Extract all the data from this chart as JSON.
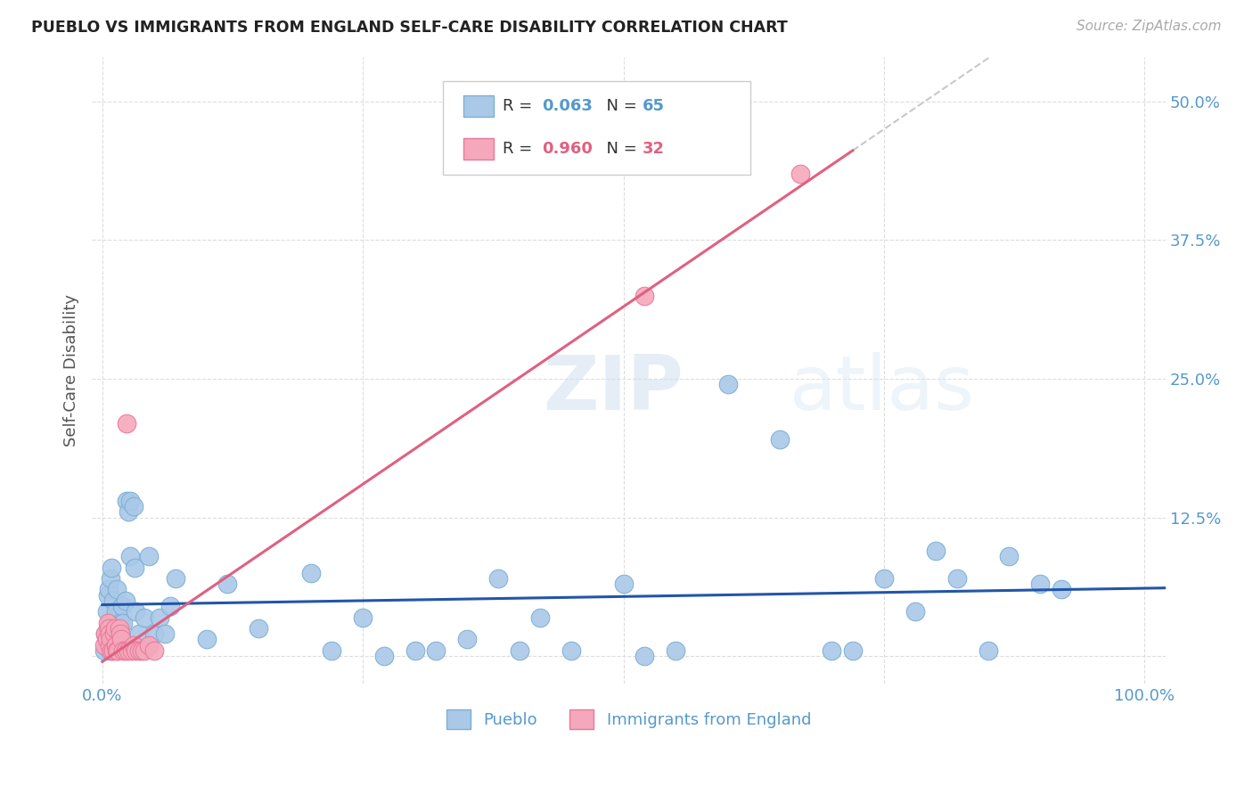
{
  "title": "PUEBLO VS IMMIGRANTS FROM ENGLAND SELF-CARE DISABILITY CORRELATION CHART",
  "source": "Source: ZipAtlas.com",
  "ylabel": "Self-Care Disability",
  "watermark": "ZIPatlas",
  "xlim": [
    -0.01,
    1.02
  ],
  "ylim": [
    -0.025,
    0.54
  ],
  "xticks": [
    0.0,
    0.25,
    0.5,
    0.75,
    1.0
  ],
  "xticklabels": [
    "0.0%",
    "",
    "",
    "",
    "100.0%"
  ],
  "yticks": [
    0.0,
    0.125,
    0.25,
    0.375,
    0.5
  ],
  "yticklabels": [
    "",
    "12.5%",
    "25.0%",
    "37.5%",
    "50.0%"
  ],
  "pueblo_color": "#aac8e8",
  "pueblo_edge": "#7aafd4",
  "england_color": "#f5a8bc",
  "england_edge": "#e87898",
  "pueblo_R": 0.063,
  "pueblo_N": 65,
  "england_R": 0.96,
  "england_N": 32,
  "legend_label_pueblo": "Pueblo",
  "legend_label_england": "Immigrants from England",
  "pueblo_line_color": "#2255aa",
  "england_line_color": "#e06080",
  "trend_ext_color": "#c8c8c8",
  "background_color": "#ffffff",
  "grid_color": "#dddddd",
  "title_color": "#222222",
  "axis_label_color": "#555555",
  "tick_color": "#5599cc",
  "legend_R_color_pueblo": "#5599cc",
  "legend_R_color_england": "#e06080",
  "pueblo_points": [
    [
      0.002,
      0.005
    ],
    [
      0.003,
      0.02
    ],
    [
      0.004,
      0.04
    ],
    [
      0.005,
      0.055
    ],
    [
      0.006,
      0.06
    ],
    [
      0.007,
      0.03
    ],
    [
      0.007,
      0.005
    ],
    [
      0.008,
      0.07
    ],
    [
      0.009,
      0.08
    ],
    [
      0.01,
      0.05
    ],
    [
      0.01,
      0.02
    ],
    [
      0.012,
      0.035
    ],
    [
      0.013,
      0.04
    ],
    [
      0.014,
      0.06
    ],
    [
      0.015,
      0.025
    ],
    [
      0.016,
      0.01
    ],
    [
      0.017,
      0.03
    ],
    [
      0.018,
      0.015
    ],
    [
      0.019,
      0.045
    ],
    [
      0.02,
      0.03
    ],
    [
      0.022,
      0.05
    ],
    [
      0.023,
      0.14
    ],
    [
      0.025,
      0.13
    ],
    [
      0.027,
      0.14
    ],
    [
      0.027,
      0.09
    ],
    [
      0.03,
      0.135
    ],
    [
      0.031,
      0.08
    ],
    [
      0.032,
      0.04
    ],
    [
      0.035,
      0.02
    ],
    [
      0.04,
      0.035
    ],
    [
      0.045,
      0.09
    ],
    [
      0.05,
      0.02
    ],
    [
      0.055,
      0.035
    ],
    [
      0.06,
      0.02
    ],
    [
      0.065,
      0.045
    ],
    [
      0.07,
      0.07
    ],
    [
      0.1,
      0.015
    ],
    [
      0.12,
      0.065
    ],
    [
      0.15,
      0.025
    ],
    [
      0.2,
      0.075
    ],
    [
      0.22,
      0.005
    ],
    [
      0.25,
      0.035
    ],
    [
      0.27,
      0.0
    ],
    [
      0.3,
      0.005
    ],
    [
      0.32,
      0.005
    ],
    [
      0.35,
      0.015
    ],
    [
      0.38,
      0.07
    ],
    [
      0.4,
      0.005
    ],
    [
      0.42,
      0.035
    ],
    [
      0.45,
      0.005
    ],
    [
      0.5,
      0.065
    ],
    [
      0.52,
      0.0
    ],
    [
      0.55,
      0.005
    ],
    [
      0.6,
      0.245
    ],
    [
      0.65,
      0.195
    ],
    [
      0.7,
      0.005
    ],
    [
      0.72,
      0.005
    ],
    [
      0.75,
      0.07
    ],
    [
      0.78,
      0.04
    ],
    [
      0.8,
      0.095
    ],
    [
      0.82,
      0.07
    ],
    [
      0.85,
      0.005
    ],
    [
      0.87,
      0.09
    ],
    [
      0.9,
      0.065
    ],
    [
      0.92,
      0.06
    ]
  ],
  "england_points": [
    [
      0.002,
      0.01
    ],
    [
      0.003,
      0.02
    ],
    [
      0.004,
      0.015
    ],
    [
      0.005,
      0.03
    ],
    [
      0.006,
      0.025
    ],
    [
      0.007,
      0.01
    ],
    [
      0.007,
      0.02
    ],
    [
      0.008,
      0.015
    ],
    [
      0.009,
      0.005
    ],
    [
      0.01,
      0.005
    ],
    [
      0.011,
      0.02
    ],
    [
      0.012,
      0.025
    ],
    [
      0.013,
      0.01
    ],
    [
      0.014,
      0.005
    ],
    [
      0.015,
      0.005
    ],
    [
      0.016,
      0.025
    ],
    [
      0.017,
      0.02
    ],
    [
      0.018,
      0.015
    ],
    [
      0.02,
      0.005
    ],
    [
      0.022,
      0.005
    ],
    [
      0.023,
      0.21
    ],
    [
      0.025,
      0.005
    ],
    [
      0.028,
      0.005
    ],
    [
      0.03,
      0.01
    ],
    [
      0.032,
      0.005
    ],
    [
      0.035,
      0.005
    ],
    [
      0.038,
      0.005
    ],
    [
      0.04,
      0.005
    ],
    [
      0.045,
      0.01
    ],
    [
      0.05,
      0.005
    ],
    [
      0.52,
      0.325
    ],
    [
      0.67,
      0.435
    ]
  ],
  "england_line_x": [
    0.0,
    0.7
  ],
  "england_line_y_start": -0.005,
  "england_slope": 0.65
}
